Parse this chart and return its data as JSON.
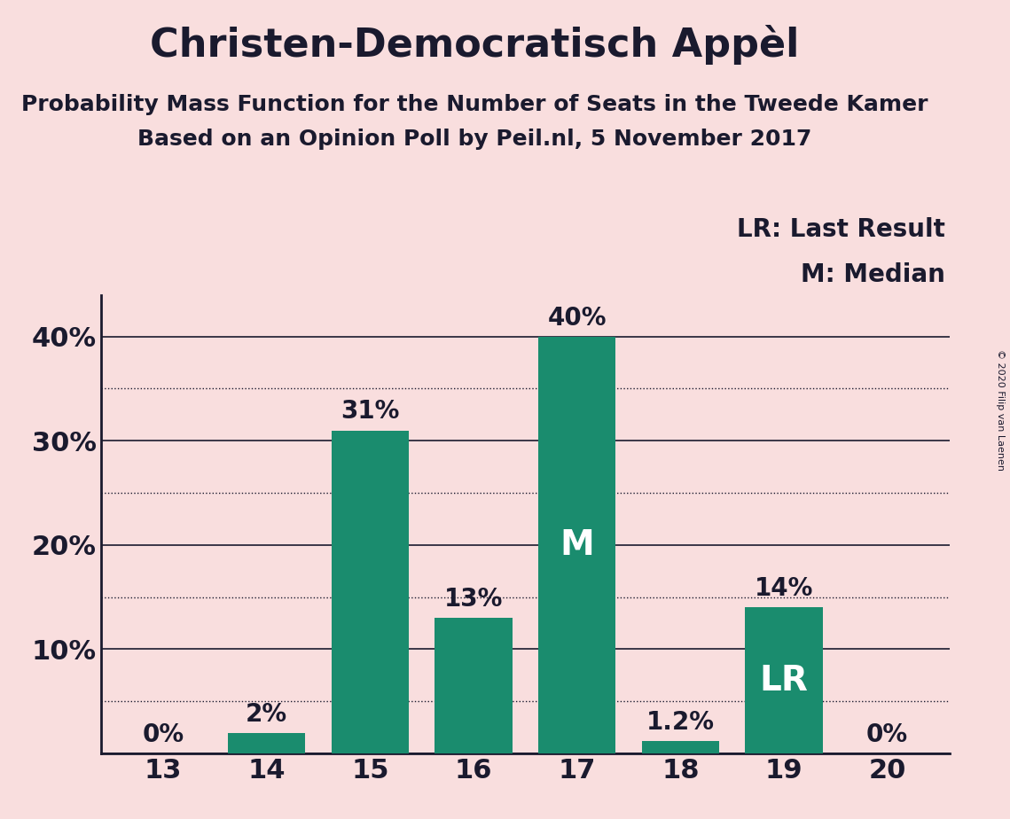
{
  "title": "Christen-Democratisch Appèl",
  "subtitle1": "Probability Mass Function for the Number of Seats in the Tweede Kamer",
  "subtitle2": "Based on an Opinion Poll by Peil.nl, 5 November 2017",
  "copyright": "© 2020 Filip van Laenen",
  "categories": [
    13,
    14,
    15,
    16,
    17,
    18,
    19,
    20
  ],
  "values": [
    0.0,
    2.0,
    31.0,
    13.0,
    40.0,
    1.2,
    14.0,
    0.0
  ],
  "bar_color": "#1a8c6e",
  "background_color": "#f9dede",
  "text_color": "#1a1a2e",
  "bar_labels": [
    "0%",
    "2%",
    "31%",
    "13%",
    "40%",
    "1.2%",
    "14%",
    "0%"
  ],
  "median_bar": 17,
  "lr_bar": 19,
  "ylim": [
    0,
    44
  ],
  "yticks_major": [
    0,
    10,
    20,
    30,
    40
  ],
  "ytick_labels": [
    "",
    "10%",
    "20%",
    "30%",
    "40%"
  ],
  "yticks_minor": [
    5,
    15,
    25,
    35
  ],
  "legend_lr": "LR: Last Result",
  "legend_m": "M: Median",
  "title_fontsize": 32,
  "subtitle_fontsize": 18,
  "tick_fontsize": 22,
  "bar_label_fontsize": 20,
  "inside_label_fontsize": 28,
  "legend_fontsize": 20
}
